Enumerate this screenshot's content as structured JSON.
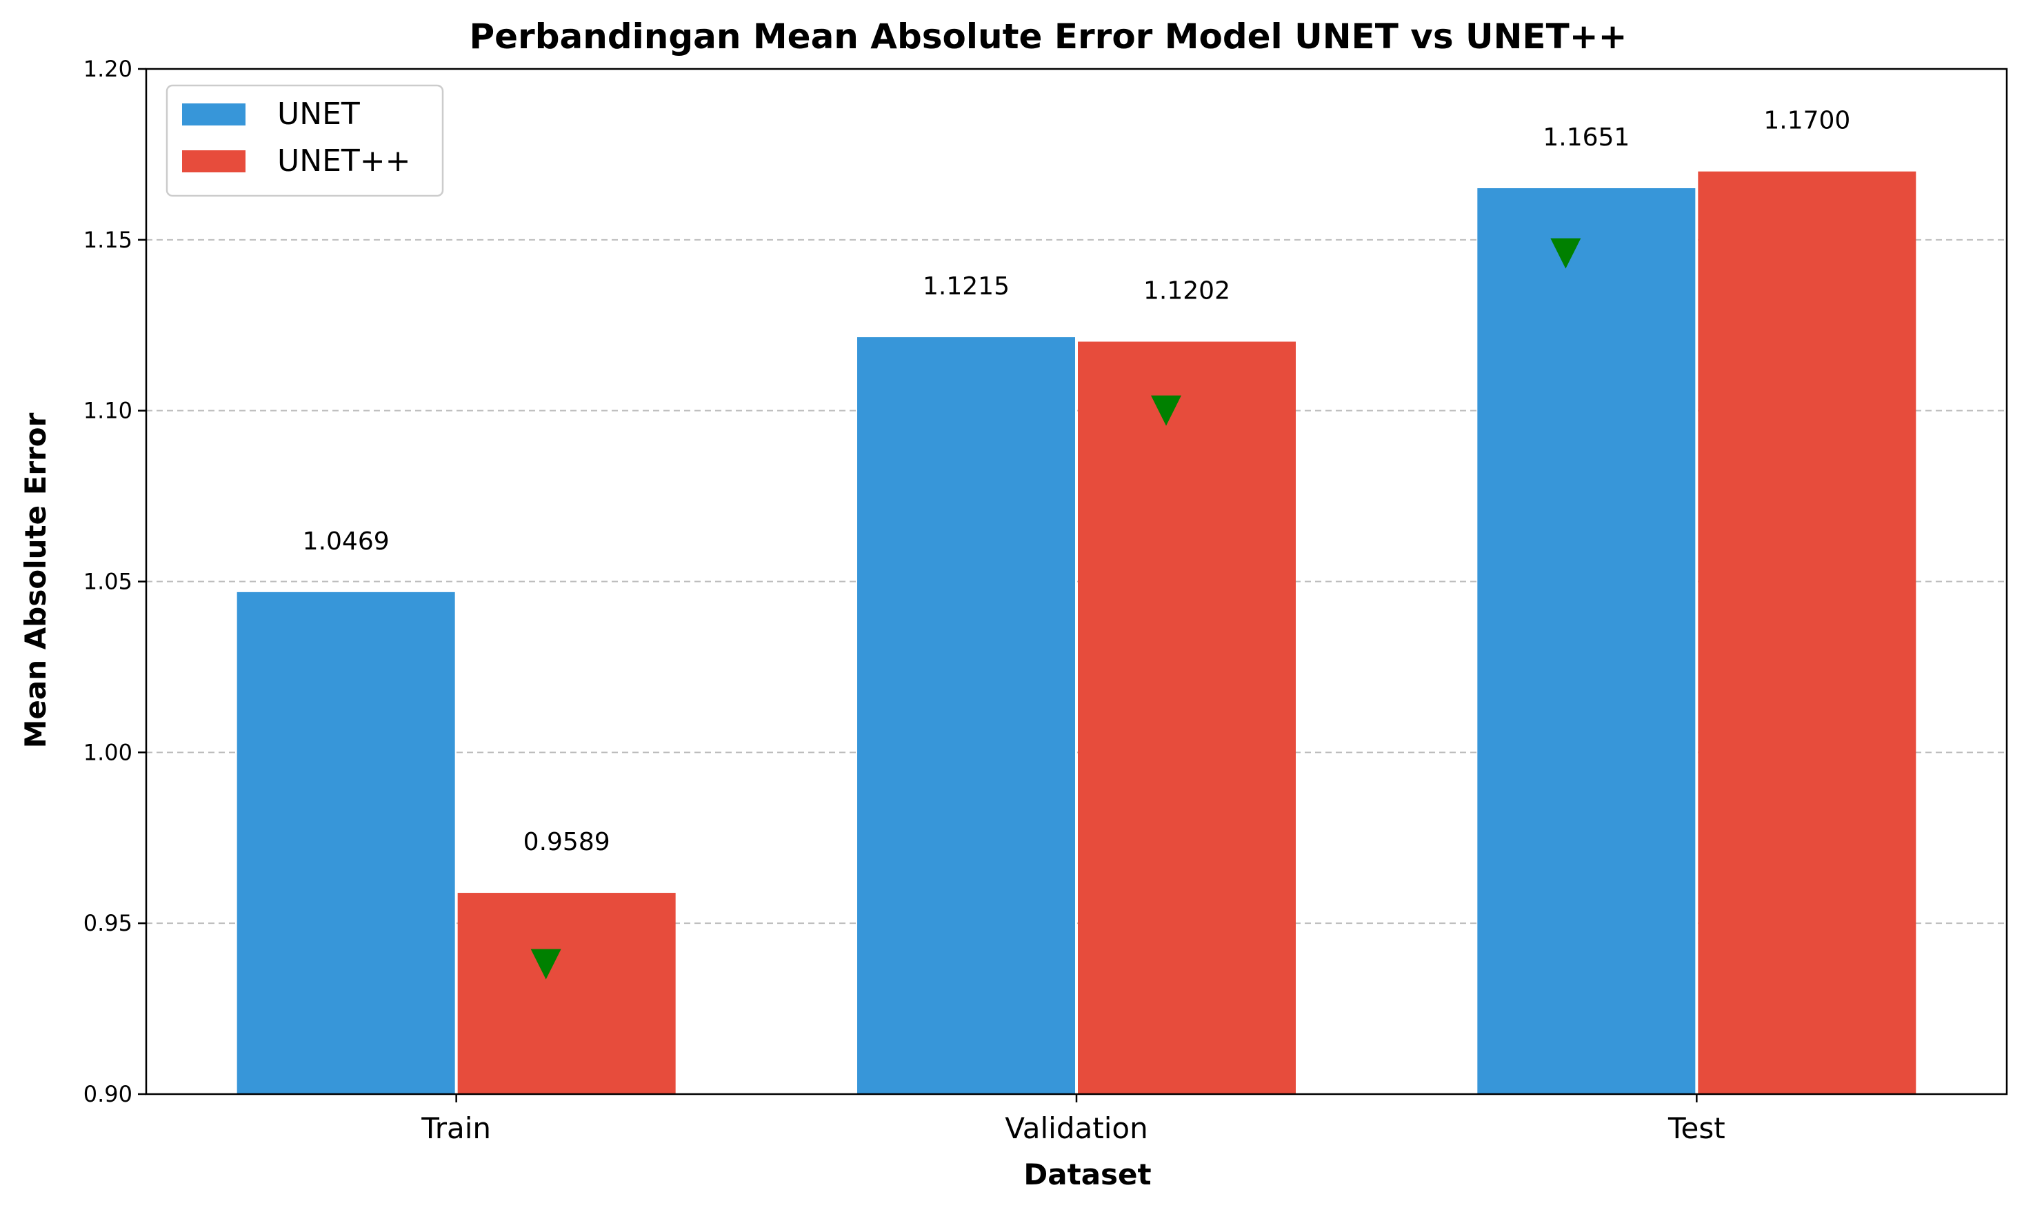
{
  "chart_data": {
    "type": "bar",
    "title": "Perbandingan Mean Absolute Error Model UNET vs UNET++",
    "xlabel": "Dataset",
    "ylabel": "Mean Absolute Error",
    "categories": [
      "Train",
      "Validation",
      "Test"
    ],
    "series": [
      {
        "name": "UNET",
        "color": "#3796D9",
        "values": [
          1.0469,
          1.1215,
          1.1651
        ],
        "labels": [
          "1.0469",
          "1.1215",
          "1.1651"
        ]
      },
      {
        "name": "UNET++",
        "color": "#E74C3C",
        "values": [
          0.9589,
          1.1202,
          1.17
        ],
        "labels": [
          "0.9589",
          "1.1202",
          "1.1700"
        ]
      }
    ],
    "ylim": [
      0.9,
      1.2
    ],
    "yticks": [
      0.9,
      0.95,
      1.0,
      1.05,
      1.1,
      1.15,
      1.2
    ],
    "ytick_labels": [
      "0.90",
      "0.95",
      "1.00",
      "1.05",
      "1.10",
      "1.15",
      "1.20"
    ],
    "grid": "y dashed",
    "legend_position": "top-left",
    "markers": {
      "shape": "triangle-down",
      "color": "#008000",
      "points": [
        {
          "category": "Train",
          "series": "UNET++",
          "value": 0.938
        },
        {
          "category": "Validation",
          "series": "UNET++",
          "value": 1.1
        },
        {
          "category": "Test",
          "series": "UNET",
          "value": 1.146
        }
      ]
    }
  }
}
